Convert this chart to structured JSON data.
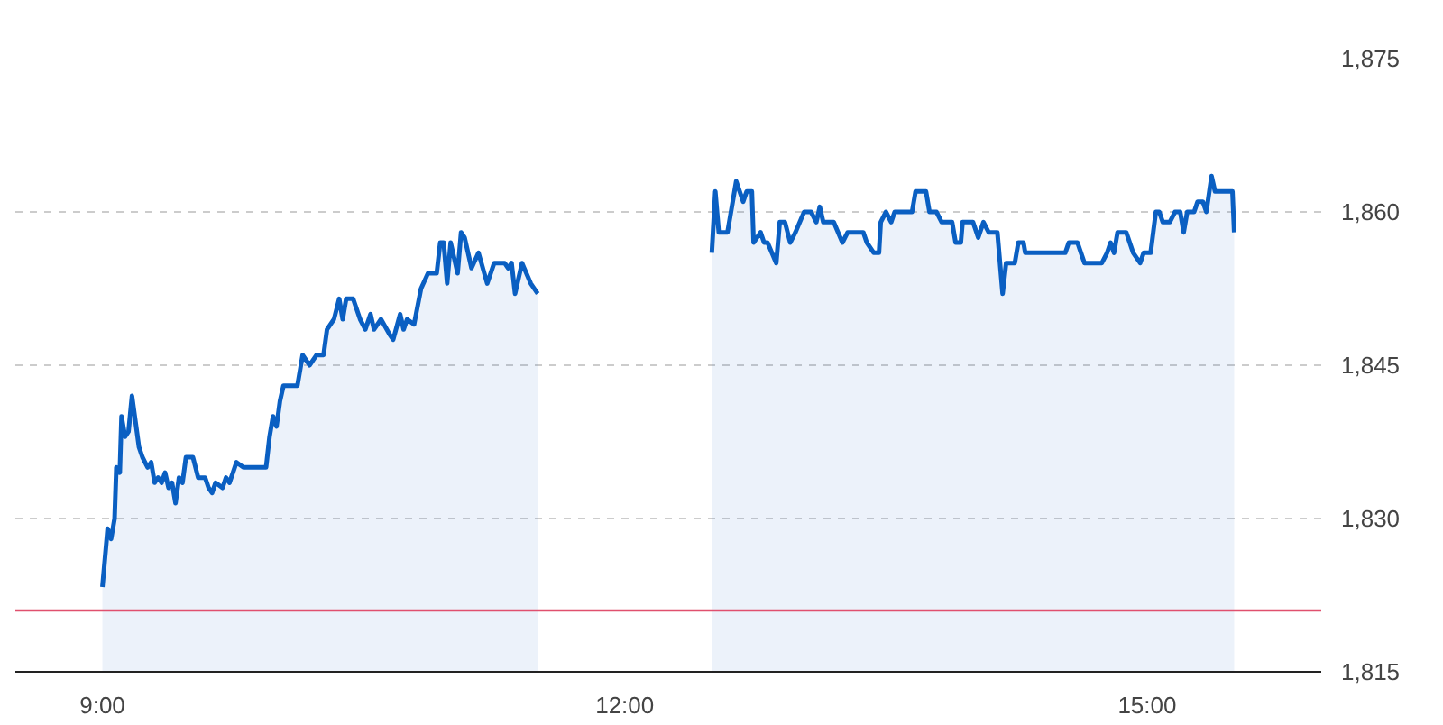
{
  "chart_data": {
    "type": "area",
    "xlim": [
      8.5,
      16.0
    ],
    "ylim": [
      1815,
      1875
    ],
    "xticks": [
      {
        "value": 9,
        "label": "9:00"
      },
      {
        "value": 12,
        "label": "12:00"
      },
      {
        "value": 15,
        "label": "15:00"
      }
    ],
    "yticks": [
      {
        "value": 1815,
        "label": "1,815"
      },
      {
        "value": 1830,
        "label": "1,830"
      },
      {
        "value": 1845,
        "label": "1,845"
      },
      {
        "value": 1860,
        "label": "1,860"
      },
      {
        "value": 1875,
        "label": "1,875"
      }
    ],
    "grid": "y",
    "ref_lines": [
      {
        "axis": "y",
        "value": 1821,
        "color": "#e0506e"
      }
    ],
    "series": [
      {
        "color": "#0a5fc2",
        "x": [
          9.0,
          9.03,
          9.05,
          9.07,
          9.08,
          9.1,
          9.11,
          9.13,
          9.15,
          9.17,
          9.21,
          9.23,
          9.26,
          9.28,
          9.3,
          9.32,
          9.34,
          9.36,
          9.38,
          9.4,
          9.42,
          9.44,
          9.46,
          9.48,
          9.52,
          9.55,
          9.59,
          9.61,
          9.63,
          9.65,
          9.69,
          9.71,
          9.73,
          9.77,
          9.81,
          9.84,
          9.88,
          9.94,
          9.96,
          9.98,
          10.0,
          10.02,
          10.04,
          10.09,
          10.12,
          10.15,
          10.19,
          10.23,
          10.27,
          10.29,
          10.33,
          10.36,
          10.38,
          10.4,
          10.44,
          10.48,
          10.51,
          10.54,
          10.56,
          10.6,
          10.65,
          10.67,
          10.71,
          10.73,
          10.75,
          10.79,
          10.83,
          10.87,
          10.92,
          10.94,
          10.96,
          10.98,
          11.0,
          11.04,
          11.06,
          11.08,
          11.12,
          11.16,
          11.21,
          11.25,
          11.27,
          11.31,
          11.33,
          11.35,
          11.37,
          11.41,
          11.46,
          11.5,
          12.0,
          12.5,
          12.52,
          12.54,
          12.59,
          12.64,
          12.68,
          12.7,
          12.73,
          12.74,
          12.78,
          12.8,
          12.82,
          12.87,
          12.89,
          12.92,
          12.95,
          12.98,
          13.03,
          13.07,
          13.1,
          13.12,
          13.14,
          13.2,
          13.25,
          13.28,
          13.37,
          13.39,
          13.43,
          13.46,
          13.47,
          13.5,
          13.53,
          13.55,
          13.65,
          13.67,
          13.73,
          13.75,
          13.79,
          13.82,
          13.88,
          13.9,
          13.93,
          13.94,
          14.0,
          14.03,
          14.06,
          14.09,
          14.14,
          14.17,
          14.19,
          14.24,
          14.26,
          14.29,
          14.3,
          14.53,
          14.55,
          14.6,
          14.62,
          14.64,
          14.74,
          14.77,
          14.79,
          14.81,
          14.83,
          14.88,
          14.92,
          14.96,
          14.98,
          15.02,
          15.05,
          15.07,
          15.09,
          15.13,
          15.16,
          15.19,
          15.21,
          15.23,
          15.27,
          15.29,
          15.32,
          15.34,
          15.37,
          15.39,
          15.49,
          15.5
        ],
        "values": [
          1823.3,
          1829,
          1828,
          1830,
          1835,
          1834.5,
          1840,
          1838,
          1838.5,
          1842,
          1837,
          1836,
          1835,
          1835.5,
          1833.5,
          1834,
          1833.5,
          1834.5,
          1833,
          1833.5,
          1831.5,
          1834,
          1833.5,
          1836,
          1836,
          1834,
          1834,
          1833,
          1832.5,
          1833.5,
          1833,
          1834,
          1833.5,
          1835.5,
          1835,
          1835,
          1835,
          1835,
          1838,
          1840,
          1839,
          1841.5,
          1843,
          1843,
          1843,
          1846,
          1845,
          1846,
          1846,
          1848.5,
          1849.5,
          1851.5,
          1849.5,
          1851.5,
          1851.5,
          1849.5,
          1848.5,
          1850,
          1848.5,
          1849.5,
          1848,
          1847.5,
          1850,
          1848.5,
          1849.5,
          1849,
          1852.5,
          1854,
          1854,
          1857,
          1857,
          1853,
          1857,
          1854,
          1858,
          1857.5,
          1854.5,
          1856,
          1853,
          1855,
          1855,
          1855,
          1854.5,
          1855,
          1852,
          1855,
          1853,
          1852,
          null,
          1856,
          1862,
          1858,
          1858,
          1863,
          1861,
          1862,
          1862,
          1857,
          1858,
          1857,
          1857,
          1855,
          1859,
          1859,
          1857,
          1858,
          1860,
          1860,
          1859,
          1860.5,
          1859,
          1859,
          1857,
          1858,
          1858,
          1857,
          1856,
          1856,
          1859,
          1860,
          1859,
          1860,
          1860,
          1862,
          1862,
          1860,
          1860,
          1859,
          1859,
          1857,
          1857,
          1859,
          1859,
          1857.5,
          1859,
          1858,
          1858,
          1852,
          1855,
          1855,
          1857,
          1857,
          1856,
          1856,
          1857,
          1857,
          1856,
          1855,
          1855,
          1856,
          1857,
          1856,
          1858,
          1858,
          1856,
          1855,
          1856,
          1856,
          1860,
          1860,
          1859,
          1859,
          1860,
          1860,
          1858,
          1860,
          1860,
          1861,
          1861,
          1860,
          1863.5,
          1862,
          1862,
          1858
        ]
      }
    ]
  }
}
